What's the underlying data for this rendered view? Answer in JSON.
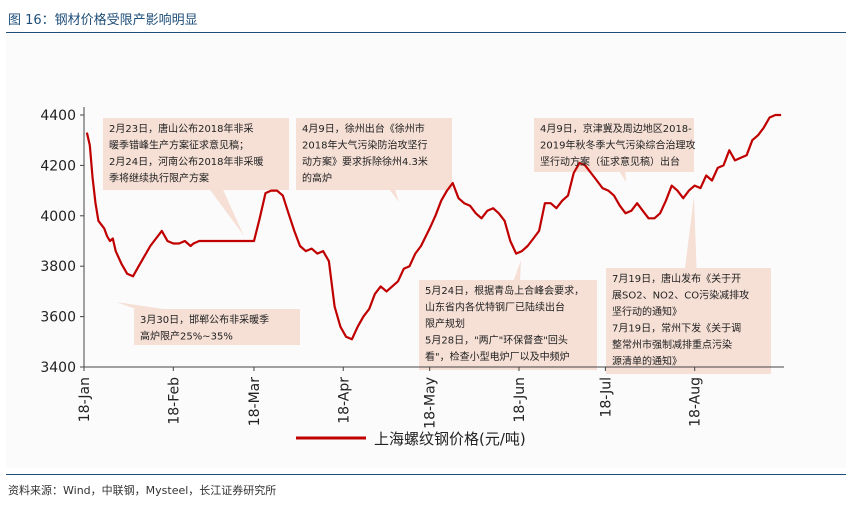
{
  "figure": {
    "title": "图 16：钢材价格受限产影响明显",
    "source": "资料来源：Wind，中联钢，Mysteel，长江证券研究所"
  },
  "colors": {
    "line": "#c00000",
    "title": "#1f4e79",
    "callout_fill": "#f6e0d6"
  },
  "chart_data": {
    "type": "line",
    "title": "",
    "xlabel": "",
    "ylabel": "",
    "ylim": [
      3400,
      4400
    ],
    "yticks": [
      3400,
      3600,
      3800,
      4000,
      4200,
      4400
    ],
    "xticks": [
      "18-Jan",
      "18-Feb",
      "18-Mar",
      "18-Apr",
      "18-May",
      "18-Jun",
      "18-Jul",
      "18-Aug"
    ],
    "grid": false,
    "legend": {
      "position": "bottom-center"
    },
    "series": [
      {
        "name": "上海螺纹钢价格(元/吨)",
        "color": "#c00000",
        "points": [
          [
            "2018-01-02",
            4330
          ],
          [
            "2018-01-03",
            4280
          ],
          [
            "2018-01-04",
            4150
          ],
          [
            "2018-01-05",
            4050
          ],
          [
            "2018-01-06",
            3980
          ],
          [
            "2018-01-08",
            3950
          ],
          [
            "2018-01-09",
            3920
          ],
          [
            "2018-01-10",
            3900
          ],
          [
            "2018-01-11",
            3910
          ],
          [
            "2018-01-12",
            3860
          ],
          [
            "2018-01-14",
            3810
          ],
          [
            "2018-01-16",
            3770
          ],
          [
            "2018-01-18",
            3760
          ],
          [
            "2018-01-20",
            3800
          ],
          [
            "2018-01-22",
            3840
          ],
          [
            "2018-01-24",
            3880
          ],
          [
            "2018-01-26",
            3910
          ],
          [
            "2018-01-28",
            3940
          ],
          [
            "2018-01-30",
            3900
          ],
          [
            "2018-02-01",
            3890
          ],
          [
            "2018-02-03",
            3890
          ],
          [
            "2018-02-05",
            3900
          ],
          [
            "2018-02-07",
            3880
          ],
          [
            "2018-02-08",
            3890
          ],
          [
            "2018-02-10",
            3900
          ],
          [
            "2018-02-13",
            3900
          ],
          [
            "2018-02-18",
            3900
          ],
          [
            "2018-02-24",
            3900
          ],
          [
            "2018-03-01",
            3900
          ],
          [
            "2018-03-03",
            3990
          ],
          [
            "2018-03-05",
            4090
          ],
          [
            "2018-03-07",
            4100
          ],
          [
            "2018-03-09",
            4100
          ],
          [
            "2018-03-11",
            4080
          ],
          [
            "2018-03-13",
            4010
          ],
          [
            "2018-03-15",
            3940
          ],
          [
            "2018-03-17",
            3880
          ],
          [
            "2018-03-19",
            3860
          ],
          [
            "2018-03-21",
            3870
          ],
          [
            "2018-03-23",
            3850
          ],
          [
            "2018-03-25",
            3860
          ],
          [
            "2018-03-27",
            3820
          ],
          [
            "2018-03-29",
            3640
          ],
          [
            "2018-03-31",
            3560
          ],
          [
            "2018-04-02",
            3520
          ],
          [
            "2018-04-04",
            3510
          ],
          [
            "2018-04-06",
            3560
          ],
          [
            "2018-04-08",
            3600
          ],
          [
            "2018-04-10",
            3630
          ],
          [
            "2018-04-12",
            3690
          ],
          [
            "2018-04-14",
            3720
          ],
          [
            "2018-04-16",
            3700
          ],
          [
            "2018-04-18",
            3720
          ],
          [
            "2018-04-20",
            3740
          ],
          [
            "2018-04-22",
            3790
          ],
          [
            "2018-04-24",
            3800
          ],
          [
            "2018-04-26",
            3850
          ],
          [
            "2018-04-28",
            3880
          ],
          [
            "2018-05-01",
            3950
          ],
          [
            "2018-05-03",
            4000
          ],
          [
            "2018-05-05",
            4060
          ],
          [
            "2018-05-07",
            4100
          ],
          [
            "2018-05-09",
            4130
          ],
          [
            "2018-05-11",
            4070
          ],
          [
            "2018-05-13",
            4050
          ],
          [
            "2018-05-15",
            4040
          ],
          [
            "2018-05-17",
            4010
          ],
          [
            "2018-05-19",
            3990
          ],
          [
            "2018-05-21",
            4020
          ],
          [
            "2018-05-23",
            4030
          ],
          [
            "2018-05-25",
            4010
          ],
          [
            "2018-05-27",
            3980
          ],
          [
            "2018-05-29",
            3900
          ],
          [
            "2018-05-31",
            3850
          ],
          [
            "2018-06-02",
            3860
          ],
          [
            "2018-06-04",
            3880
          ],
          [
            "2018-06-06",
            3910
          ],
          [
            "2018-06-08",
            3940
          ],
          [
            "2018-06-10",
            4050
          ],
          [
            "2018-06-12",
            4050
          ],
          [
            "2018-06-14",
            4030
          ],
          [
            "2018-06-16",
            4060
          ],
          [
            "2018-06-18",
            4080
          ],
          [
            "2018-06-20",
            4170
          ],
          [
            "2018-06-22",
            4210
          ],
          [
            "2018-06-24",
            4200
          ],
          [
            "2018-06-26",
            4170
          ],
          [
            "2018-06-28",
            4140
          ],
          [
            "2018-06-30",
            4110
          ],
          [
            "2018-07-02",
            4100
          ],
          [
            "2018-07-04",
            4080
          ],
          [
            "2018-07-06",
            4040
          ],
          [
            "2018-07-08",
            4010
          ],
          [
            "2018-07-10",
            4020
          ],
          [
            "2018-07-12",
            4050
          ],
          [
            "2018-07-14",
            4020
          ],
          [
            "2018-07-16",
            3990
          ],
          [
            "2018-07-18",
            3990
          ],
          [
            "2018-07-20",
            4010
          ],
          [
            "2018-07-22",
            4060
          ],
          [
            "2018-07-24",
            4120
          ],
          [
            "2018-07-26",
            4100
          ],
          [
            "2018-07-28",
            4070
          ],
          [
            "2018-07-30",
            4100
          ],
          [
            "2018-08-01",
            4120
          ],
          [
            "2018-08-03",
            4110
          ],
          [
            "2018-08-05",
            4160
          ],
          [
            "2018-08-07",
            4140
          ],
          [
            "2018-08-09",
            4190
          ],
          [
            "2018-08-11",
            4200
          ],
          [
            "2018-08-13",
            4260
          ],
          [
            "2018-08-15",
            4220
          ],
          [
            "2018-08-17",
            4230
          ],
          [
            "2018-08-19",
            4240
          ],
          [
            "2018-08-21",
            4300
          ],
          [
            "2018-08-23",
            4320
          ],
          [
            "2018-08-25",
            4350
          ],
          [
            "2018-08-27",
            4390
          ],
          [
            "2018-08-29",
            4400
          ],
          [
            "2018-08-31",
            4400
          ]
        ]
      }
    ],
    "annotations": [
      {
        "id": "a1",
        "lines": [
          "2月23日，唐山公布2018年非采",
          "暖季错峰生产方案征求意见稿；",
          "2月24日，河南公布2018年非采暖",
          "季将继续执行限产方案"
        ]
      },
      {
        "id": "a2",
        "lines": [
          "3月30日，邯郸公布非采暖季",
          "高炉限产25%~35%"
        ]
      },
      {
        "id": "a3",
        "lines": [
          "4月9日，徐州出台《徐州市",
          "2018年大气污染防治攻坚行",
          "动方案》要求拆除徐州4.3米",
          "的高炉"
        ]
      },
      {
        "id": "a4",
        "lines": [
          "5月24日，根据青岛上合峰会要求，",
          "山东省内各优特钢厂已陆续出台",
          "限产规划",
          "5月28日，\"两广\"环保督查\"回头",
          "看\"，检查小型电炉厂以及中频炉"
        ]
      },
      {
        "id": "a5",
        "lines": [
          "4月9日，京津冀及周边地区2018-",
          "2019年秋冬季大气污染综合治理攻",
          "坚行动方案（征求意见稿）出台"
        ]
      },
      {
        "id": "a6",
        "lines": [
          "7月19日，唐山发布《关于开",
          "展SO2、NO2、CO污染减排攻",
          "坚行动的通知》",
          "7月19日，常州下发《关于调",
          "整常州市强制减排重点污染",
          "源清单的通知》"
        ]
      }
    ]
  }
}
